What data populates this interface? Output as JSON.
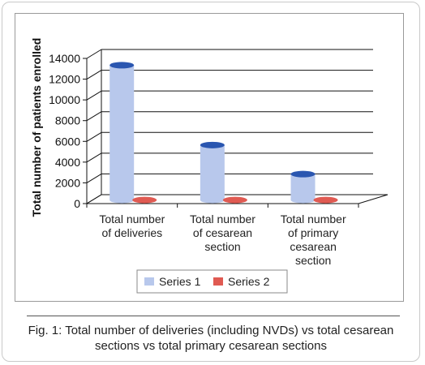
{
  "chart_data": {
    "type": "bar",
    "categories": [
      [
        "Total number",
        "of deliveries"
      ],
      [
        "Total number",
        "of cesarean",
        "section"
      ],
      [
        "Total number",
        "of primary",
        "cesarean",
        "section"
      ]
    ],
    "series": [
      {
        "name": "Series 1",
        "values": [
          13000,
          5300,
          2500
        ],
        "color": "#b8c8ec"
      },
      {
        "name": "Series 2",
        "values": [
          0,
          0,
          0
        ],
        "color": "#e05a52"
      }
    ],
    "series1_cap_color": "#2a56b0",
    "ylabel": "Total number of patients enrolled",
    "xlabel": "",
    "ylim": [
      0,
      14000
    ],
    "yticks": [
      "0",
      "2000",
      "4000",
      "6000",
      "8000",
      "10000",
      "12000",
      "14000"
    ],
    "grid": true,
    "legend_position": "bottom"
  },
  "caption": "Fig. 1: Total number of deliveries (including NVDs) vs total cesarean sections vs total primary cesarean sections"
}
